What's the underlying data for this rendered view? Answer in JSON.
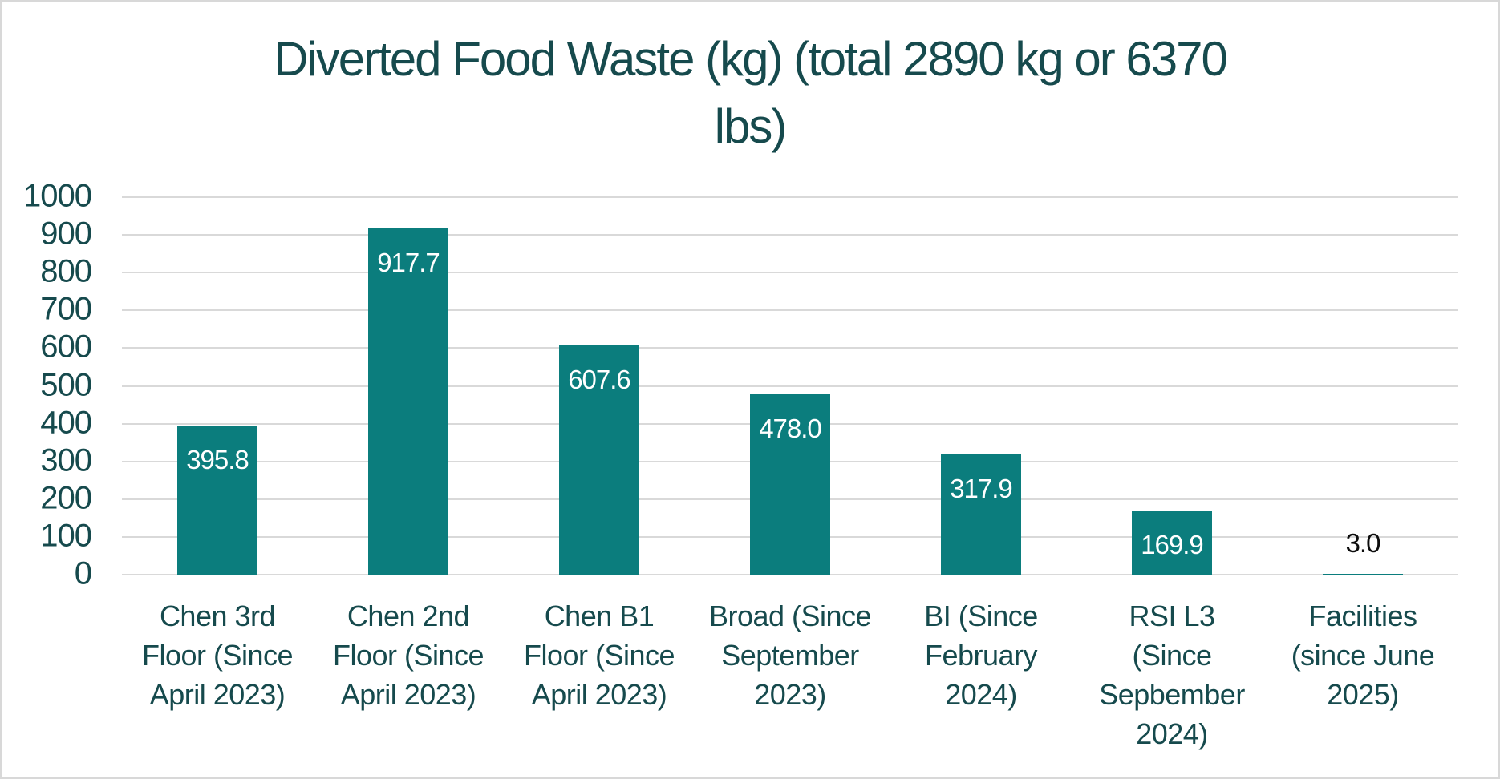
{
  "colors": {
    "background": "#FFFFFF",
    "border": "#D8D8D8",
    "bar": "#0B7D7D",
    "text": "#164A4D",
    "gridline": "#D9D9D9",
    "value_label_inside": "#FFFFFF",
    "value_label_outside": "#0D0D0D"
  },
  "chart_data": {
    "type": "bar",
    "title": "Diverted Food Waste (kg) (total 2890 kg or 6370 lbs)",
    "title_display": "Diverted Food Waste (kg) (total 2890 kg or 6370\nlbs)",
    "categories": [
      "Chen 3rd Floor (Since April 2023)",
      "Chen 2nd Floor (Since April 2023)",
      "Chen B1 Floor (Since April 2023)",
      "Broad (Since September 2023)",
      "BI (Since February 2024)",
      "RSI L3 (Since Sepbember 2024)",
      "Facilities (since June 2025)"
    ],
    "categories_display": [
      "Chen 3rd\nFloor (Since\nApril 2023)",
      "Chen 2nd\nFloor (Since\nApril 2023)",
      "Chen B1\nFloor (Since\nApril 2023)",
      "Broad (Since\nSeptember\n2023)",
      "BI (Since\nFebruary\n2024)",
      "RSI L3\n(Since\nSepbember\n2024)",
      "Facilities\n(since June\n2025)"
    ],
    "values": [
      395.8,
      917.7,
      607.6,
      478.0,
      317.9,
      169.9,
      3.0
    ],
    "value_labels": [
      "395.8",
      "917.7",
      "607.6",
      "478.0",
      "317.9",
      "169.9",
      "3.0"
    ],
    "xlabel": "",
    "ylabel": "",
    "ylim": [
      0,
      1000
    ],
    "yticks": [
      0,
      100,
      200,
      300,
      400,
      500,
      600,
      700,
      800,
      900,
      1000
    ],
    "grid": true,
    "legend": false
  }
}
